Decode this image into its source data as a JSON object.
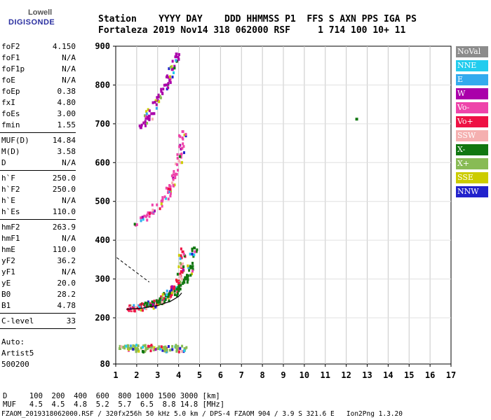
{
  "logo": {
    "line1": "Lowell",
    "line2": "DIGISONDE"
  },
  "header": {
    "row1": "Station    YYYY DAY    DDD HHMMSS P1  FFS S AXN PPS IGA PS",
    "row2": "Fortaleza 2019 Nov14 318 062000 RSF     1 714 100 10+ 11"
  },
  "params": {
    "group1": [
      {
        "name": "foF2",
        "value": "4.150"
      },
      {
        "name": "foF1",
        "value": "N/A"
      },
      {
        "name": "foF1p",
        "value": "N/A"
      },
      {
        "name": "foE",
        "value": "N/A"
      },
      {
        "name": "foEp",
        "value": "0.38"
      },
      {
        "name": "fxI",
        "value": "4.80"
      },
      {
        "name": "foEs",
        "value": "3.00"
      },
      {
        "name": "fmin",
        "value": "1.55"
      }
    ],
    "group2": [
      {
        "name": "MUF(D)",
        "value": "14.84"
      },
      {
        "name": "M(D)",
        "value": "3.58"
      },
      {
        "name": "D",
        "value": "N/A"
      }
    ],
    "group3": [
      {
        "name": "h`F",
        "value": "250.0"
      },
      {
        "name": "h`F2",
        "value": "250.0"
      },
      {
        "name": "h`E",
        "value": "N/A"
      },
      {
        "name": "h`Es",
        "value": "110.0"
      }
    ],
    "group4": [
      {
        "name": "hmF2",
        "value": "263.9"
      },
      {
        "name": "hmF1",
        "value": "N/A"
      },
      {
        "name": "hmE",
        "value": "110.0"
      },
      {
        "name": "yF2",
        "value": "36.2"
      },
      {
        "name": "yF1",
        "value": "N/A"
      },
      {
        "name": "yE",
        "value": "20.0"
      },
      {
        "name": "B0",
        "value": "28.2"
      },
      {
        "name": "B1",
        "value": "4.78"
      }
    ],
    "group5": [
      {
        "name": "C-level",
        "value": "33"
      }
    ],
    "auto": [
      "Auto:",
      "Artist5",
      "500200"
    ]
  },
  "legend": [
    {
      "label": "NoVal",
      "color": "#8c8c8c"
    },
    {
      "label": "NNE",
      "color": "#22ccee"
    },
    {
      "label": "E",
      "color": "#33aaee"
    },
    {
      "label": "W",
      "color": "#aa00aa"
    },
    {
      "label": "Vo-",
      "color": "#ee44aa"
    },
    {
      "label": "Vo+",
      "color": "#ee1144"
    },
    {
      "label": "SSW",
      "color": "#f5b0b0"
    },
    {
      "label": "X-",
      "color": "#117711"
    },
    {
      "label": "X+",
      "color": "#88bb55"
    },
    {
      "label": "SSE",
      "color": "#cccc00"
    },
    {
      "label": "NNW",
      "color": "#2222cc"
    }
  ],
  "footer": {
    "row1": "D     100  200  400  600  800 1000 1500 3000 [km]",
    "row2": "MUF   4.5  4.5  4.8  5.2  5.7  6.5  8.8 14.8 [MHz]",
    "row3": "FZAOM_2019318062000.RSF / 320fx256h 50 kHz 5.0 km / DPS-4 FZAOM 904 / 3.9 S 321.6 E   Ion2Png 1.3.20"
  },
  "chart_data": {
    "type": "scatter",
    "xlim": [
      1,
      17
    ],
    "ylim": [
      80,
      900
    ],
    "xticks": [
      "1",
      "2",
      "3",
      "4",
      "5",
      "6",
      "7",
      "8",
      "9",
      "10",
      "11",
      "12",
      "13",
      "14",
      "15",
      "16",
      "17"
    ],
    "yticks": [
      "80",
      "200",
      "300",
      "400",
      "500",
      "600",
      "700",
      "800",
      "900"
    ],
    "grid": true,
    "traces": [
      {
        "name": "o-trace",
        "color": "#ee1144",
        "points": [
          [
            1.6,
            222
          ],
          [
            2.0,
            225
          ],
          [
            2.4,
            228
          ],
          [
            2.8,
            235
          ],
          [
            3.2,
            245
          ],
          [
            3.5,
            258
          ],
          [
            3.8,
            275
          ],
          [
            4.0,
            295
          ],
          [
            4.15,
            330
          ],
          [
            4.2,
            370
          ]
        ]
      },
      {
        "name": "x-trace",
        "color": "#117711",
        "points": [
          [
            2.5,
            230
          ],
          [
            3.0,
            240
          ],
          [
            3.5,
            255
          ],
          [
            4.0,
            275
          ],
          [
            4.4,
            300
          ],
          [
            4.6,
            330
          ],
          [
            4.75,
            380
          ]
        ]
      },
      {
        "name": "multi-hop",
        "color": "#ee44aa",
        "points": [
          [
            2.0,
            440
          ],
          [
            2.6,
            470
          ],
          [
            3.2,
            500
          ],
          [
            3.6,
            530
          ],
          [
            3.9,
            570
          ],
          [
            4.1,
            620
          ],
          [
            4.2,
            680
          ]
        ]
      },
      {
        "name": "upper-echo",
        "color": "#aa00aa",
        "points": [
          [
            2.2,
            690
          ],
          [
            2.6,
            720
          ],
          [
            3.0,
            760
          ],
          [
            3.4,
            800
          ],
          [
            3.7,
            840
          ],
          [
            3.9,
            880
          ]
        ]
      },
      {
        "name": "es-layer",
        "color": "#88bb55",
        "points": [
          [
            1.2,
            120
          ],
          [
            1.6,
            120
          ],
          [
            2.0,
            120
          ],
          [
            2.5,
            120
          ],
          [
            3.0,
            120
          ],
          [
            3.4,
            120
          ],
          [
            4.0,
            120
          ],
          [
            4.3,
            120
          ]
        ]
      },
      {
        "name": "isolated",
        "color": "#117711",
        "points": [
          [
            12.5,
            712
          ]
        ]
      }
    ],
    "profile": {
      "points": [
        [
          1.5,
          222
        ],
        [
          2.3,
          225
        ],
        [
          3.0,
          232
        ],
        [
          3.6,
          242
        ],
        [
          4.0,
          255
        ],
        [
          4.15,
          264
        ]
      ]
    }
  }
}
